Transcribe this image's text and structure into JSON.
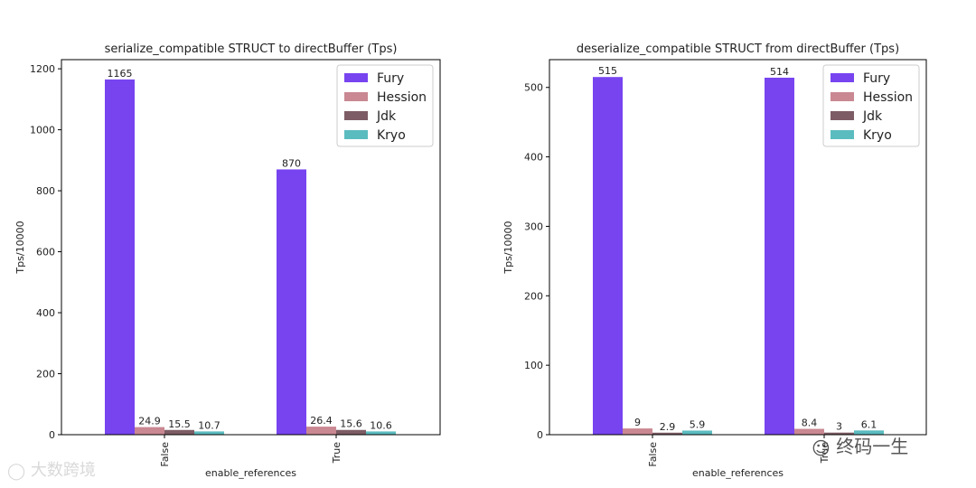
{
  "chart_data": [
    {
      "type": "bar",
      "title": "serialize_compatible STRUCT to directBuffer (Tps)",
      "xlabel": "enable_references",
      "ylabel": "Tps/10000",
      "categories": [
        "False",
        "True"
      ],
      "ylim": [
        0,
        1230
      ],
      "yticks": [
        0,
        200,
        400,
        600,
        800,
        1000,
        1200
      ],
      "grid": false,
      "legend": "top-right",
      "series": [
        {
          "name": "Fury",
          "values": [
            1165,
            870
          ],
          "labels": [
            "1165",
            "870"
          ],
          "color": "#7744f0"
        },
        {
          "name": "Hession",
          "values": [
            24.9,
            26.4
          ],
          "labels": [
            "24.9",
            "26.4"
          ],
          "color": "#c98892"
        },
        {
          "name": "Jdk",
          "values": [
            15.5,
            15.6
          ],
          "labels": [
            "15.5",
            "15.6"
          ],
          "color": "#7d5c65"
        },
        {
          "name": "Kryo",
          "values": [
            10.7,
            10.6
          ],
          "labels": [
            "10.7",
            "10.6"
          ],
          "color": "#5bbcbf"
        }
      ]
    },
    {
      "type": "bar",
      "title": "deserialize_compatible STRUCT from directBuffer (Tps)",
      "xlabel": "enable_references",
      "ylabel": "Tps/10000",
      "categories": [
        "False",
        "True"
      ],
      "ylim": [
        0,
        540
      ],
      "yticks": [
        0,
        100,
        200,
        300,
        400,
        500
      ],
      "grid": false,
      "legend": "top-right",
      "series": [
        {
          "name": "Fury",
          "values": [
            515,
            514
          ],
          "labels": [
            "515",
            "514"
          ],
          "color": "#7744f0"
        },
        {
          "name": "Hession",
          "values": [
            9,
            8.4
          ],
          "labels": [
            "9",
            "8.4"
          ],
          "color": "#c98892"
        },
        {
          "name": "Jdk",
          "values": [
            2.9,
            3
          ],
          "labels": [
            "2.9",
            "3"
          ],
          "color": "#7d5c65"
        },
        {
          "name": "Kryo",
          "values": [
            5.9,
            6.1
          ],
          "labels": [
            "5.9",
            "6.1"
          ],
          "color": "#5bbcbf"
        }
      ]
    }
  ],
  "watermarks": {
    "left": "大数跨境",
    "right": "终码一生"
  }
}
